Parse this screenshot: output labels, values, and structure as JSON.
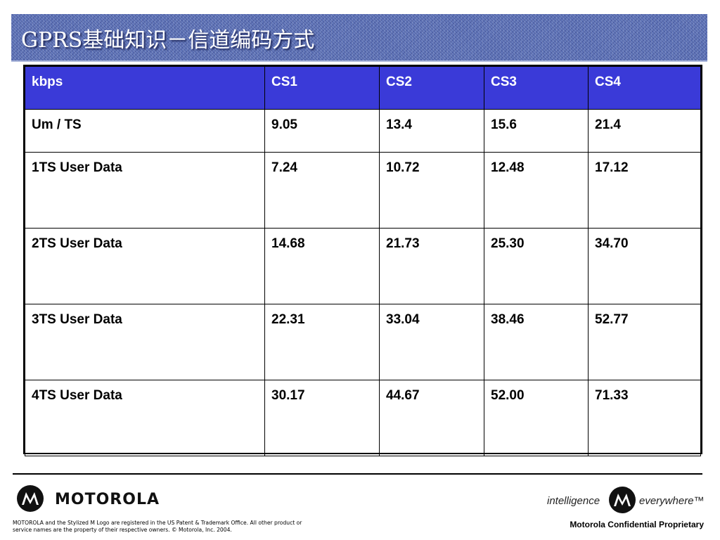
{
  "slide": {
    "title": "GPRS基础知识－信道编码方式"
  },
  "table": {
    "headers": [
      "kbps",
      "CS1",
      "CS2",
      "CS3",
      "CS4"
    ],
    "rows": [
      [
        "Um / TS",
        "9.05",
        "13.4",
        "15.6",
        "21.4"
      ],
      [
        "1TS User Data",
        "7.24",
        "10.72",
        "12.48",
        "17.12"
      ],
      [
        "2TS User Data",
        "14.68",
        "21.73",
        "25.30",
        "34.70"
      ],
      [
        "3TS User Data",
        "22.31",
        "33.04",
        "38.46",
        "52.77"
      ],
      [
        "4TS User Data",
        "30.17",
        "44.67",
        "52.00",
        "71.33"
      ]
    ]
  },
  "footer": {
    "brand": "MOTOROLA",
    "tagline_left": "intelligence",
    "tagline_right": "everywhere™",
    "legal": "MOTOROLA and the Stylized M Logo are registered in the US Patent & Trademark Office. All other product or service names are the property of their respective owners. © Motorola, Inc. 2004.",
    "confidential": "Motorola Confidential Proprietary"
  },
  "colors": {
    "header_fill": "#3a3ad8",
    "title_band": "#5a6fb4"
  }
}
